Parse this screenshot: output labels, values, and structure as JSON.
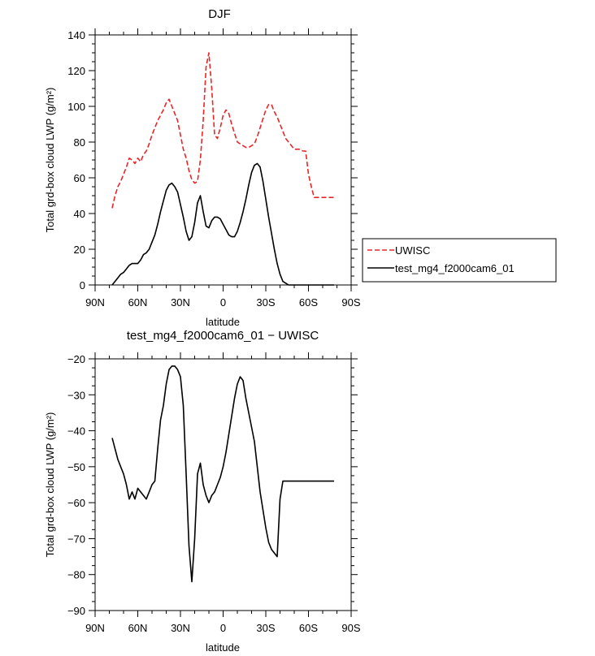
{
  "chart_data": [
    {
      "type": "line",
      "title": "DJF",
      "xlabel": "latitude",
      "ylabel": "Total grd-box cloud LWP (g/m²)",
      "xlim": [
        90,
        -90
      ],
      "ylim": [
        0,
        140
      ],
      "x_tick_labels": [
        "90N",
        "60N",
        "30N",
        "0",
        "30S",
        "60S",
        "90S"
      ],
      "y_tick_labels": [
        "0",
        "20",
        "40",
        "60",
        "80",
        "100",
        "120",
        "140"
      ],
      "legend": {
        "placement": "right"
      },
      "series": [
        {
          "name": "UWISC",
          "color": "#e8262a",
          "dash": "dashed",
          "x": [
            78,
            76,
            74,
            72,
            70,
            68,
            66,
            64,
            62,
            60,
            58,
            56,
            54,
            52,
            50,
            48,
            46,
            44,
            42,
            40,
            38,
            36,
            34,
            32,
            30,
            28,
            26,
            24,
            22,
            20,
            18,
            16,
            14,
            12,
            10,
            8,
            6,
            4,
            2,
            0,
            -2,
            -4,
            -6,
            -8,
            -10,
            -12,
            -14,
            -16,
            -18,
            -20,
            -22,
            -24,
            -26,
            -28,
            -30,
            -32,
            -34,
            -36,
            -38,
            -40,
            -42,
            -44,
            -46,
            -48,
            -50,
            -52,
            -54,
            -56,
            -58,
            -60,
            -62,
            -64,
            -66,
            -68,
            -70,
            -72,
            -74,
            -76,
            -78
          ],
          "y": [
            43,
            50,
            55,
            58,
            62,
            66,
            71,
            70,
            68,
            71,
            69,
            73,
            75,
            79,
            84,
            88,
            92,
            95,
            98,
            102,
            104,
            100,
            96,
            92,
            84,
            76,
            71,
            64,
            59,
            57,
            58,
            70,
            92,
            122,
            130,
            110,
            84,
            82,
            88,
            95,
            98,
            96,
            90,
            85,
            80,
            79,
            78,
            77,
            77,
            78,
            79,
            83,
            88,
            93,
            98,
            101,
            101,
            97,
            94,
            90,
            86,
            82,
            80,
            78,
            76,
            76,
            76,
            75,
            75,
            62,
            55,
            49,
            49,
            49,
            49,
            49,
            49,
            49,
            49
          ]
        },
        {
          "name": "test_mg4_f2000cam6_01",
          "color": "#000000",
          "dash": "solid",
          "x": [
            78,
            76,
            74,
            72,
            70,
            68,
            66,
            64,
            62,
            60,
            58,
            56,
            54,
            52,
            50,
            48,
            46,
            44,
            42,
            40,
            38,
            36,
            34,
            32,
            30,
            28,
            26,
            24,
            22,
            20,
            18,
            16,
            14,
            12,
            10,
            8,
            6,
            4,
            2,
            0,
            -2,
            -4,
            -6,
            -8,
            -10,
            -12,
            -14,
            -16,
            -18,
            -20,
            -22,
            -24,
            -26,
            -28,
            -30,
            -32,
            -34,
            -36,
            -38,
            -40,
            -42,
            -44,
            -46,
            -48,
            -50,
            -52,
            -54,
            -56,
            -58,
            -60,
            -62,
            -64,
            -66,
            -68,
            -70,
            -72,
            -74,
            -76,
            -78
          ],
          "y": [
            0,
            2,
            4,
            6,
            7,
            9,
            11,
            12,
            12,
            12,
            14,
            17,
            18,
            20,
            24,
            28,
            34,
            41,
            47,
            53,
            56,
            57,
            55,
            52,
            45,
            38,
            30,
            25,
            27,
            35,
            46,
            50,
            41,
            33,
            32,
            36,
            38,
            38,
            37,
            34,
            31,
            28,
            27,
            27,
            30,
            35,
            41,
            48,
            56,
            63,
            67,
            68,
            66,
            58,
            48,
            38,
            29,
            20,
            12,
            6,
            2,
            1,
            0,
            0,
            0,
            0,
            0,
            0,
            0,
            0,
            0,
            0,
            0,
            0,
            0,
            0,
            0,
            0,
            0
          ]
        }
      ]
    },
    {
      "type": "line",
      "title": "test_mg4_f2000cam6_01 − UWISC",
      "xlabel": "latitude",
      "ylabel": "Total grd-box cloud LWP (g/m²)",
      "xlim": [
        90,
        -90
      ],
      "ylim": [
        -90,
        -20
      ],
      "x_tick_labels": [
        "90N",
        "60N",
        "30N",
        "0",
        "30S",
        "60S",
        "90S"
      ],
      "y_tick_labels": [
        "−90",
        "−80",
        "−70",
        "−60",
        "−50",
        "−40",
        "−30",
        "−20"
      ],
      "series": [
        {
          "color": "#000000",
          "dash": "solid",
          "x": [
            78,
            76,
            74,
            72,
            70,
            68,
            66,
            64,
            62,
            60,
            58,
            56,
            54,
            52,
            50,
            48,
            46,
            44,
            42,
            40,
            38,
            36,
            34,
            32,
            30,
            28,
            26,
            24,
            22,
            20,
            18,
            16,
            14,
            12,
            10,
            8,
            6,
            4,
            2,
            0,
            -2,
            -4,
            -6,
            -8,
            -10,
            -12,
            -14,
            -16,
            -18,
            -20,
            -22,
            -24,
            -26,
            -28,
            -30,
            -32,
            -34,
            -36,
            -38,
            -40,
            -42,
            -44,
            -46,
            -48,
            -50,
            -52,
            -54,
            -56,
            -58,
            -60,
            -62,
            -64,
            -66,
            -68,
            -70,
            -72,
            -74,
            -76,
            -78
          ],
          "y": [
            -42,
            -45,
            -48,
            -50,
            -52,
            -55,
            -59,
            -57,
            -59,
            -56,
            -57,
            -58,
            -59,
            -57,
            -55,
            -54,
            -45,
            -37,
            -33,
            -27,
            -23,
            -22,
            -22,
            -23,
            -25,
            -33,
            -52,
            -72,
            -82,
            -70,
            -52,
            -49,
            -55,
            -58,
            -60,
            -58,
            -57,
            -55,
            -53,
            -50,
            -46,
            -41,
            -36,
            -31,
            -27,
            -25,
            -26,
            -31,
            -35,
            -39,
            -43,
            -50,
            -57,
            -62,
            -67,
            -71,
            -73,
            -74,
            -75,
            -59,
            -54,
            -54,
            -54,
            -54,
            -54,
            -54,
            -54,
            -54,
            -54,
            -54,
            -54,
            -54,
            -54,
            -54,
            -54,
            -54,
            -54,
            -54,
            -54
          ]
        }
      ]
    }
  ]
}
